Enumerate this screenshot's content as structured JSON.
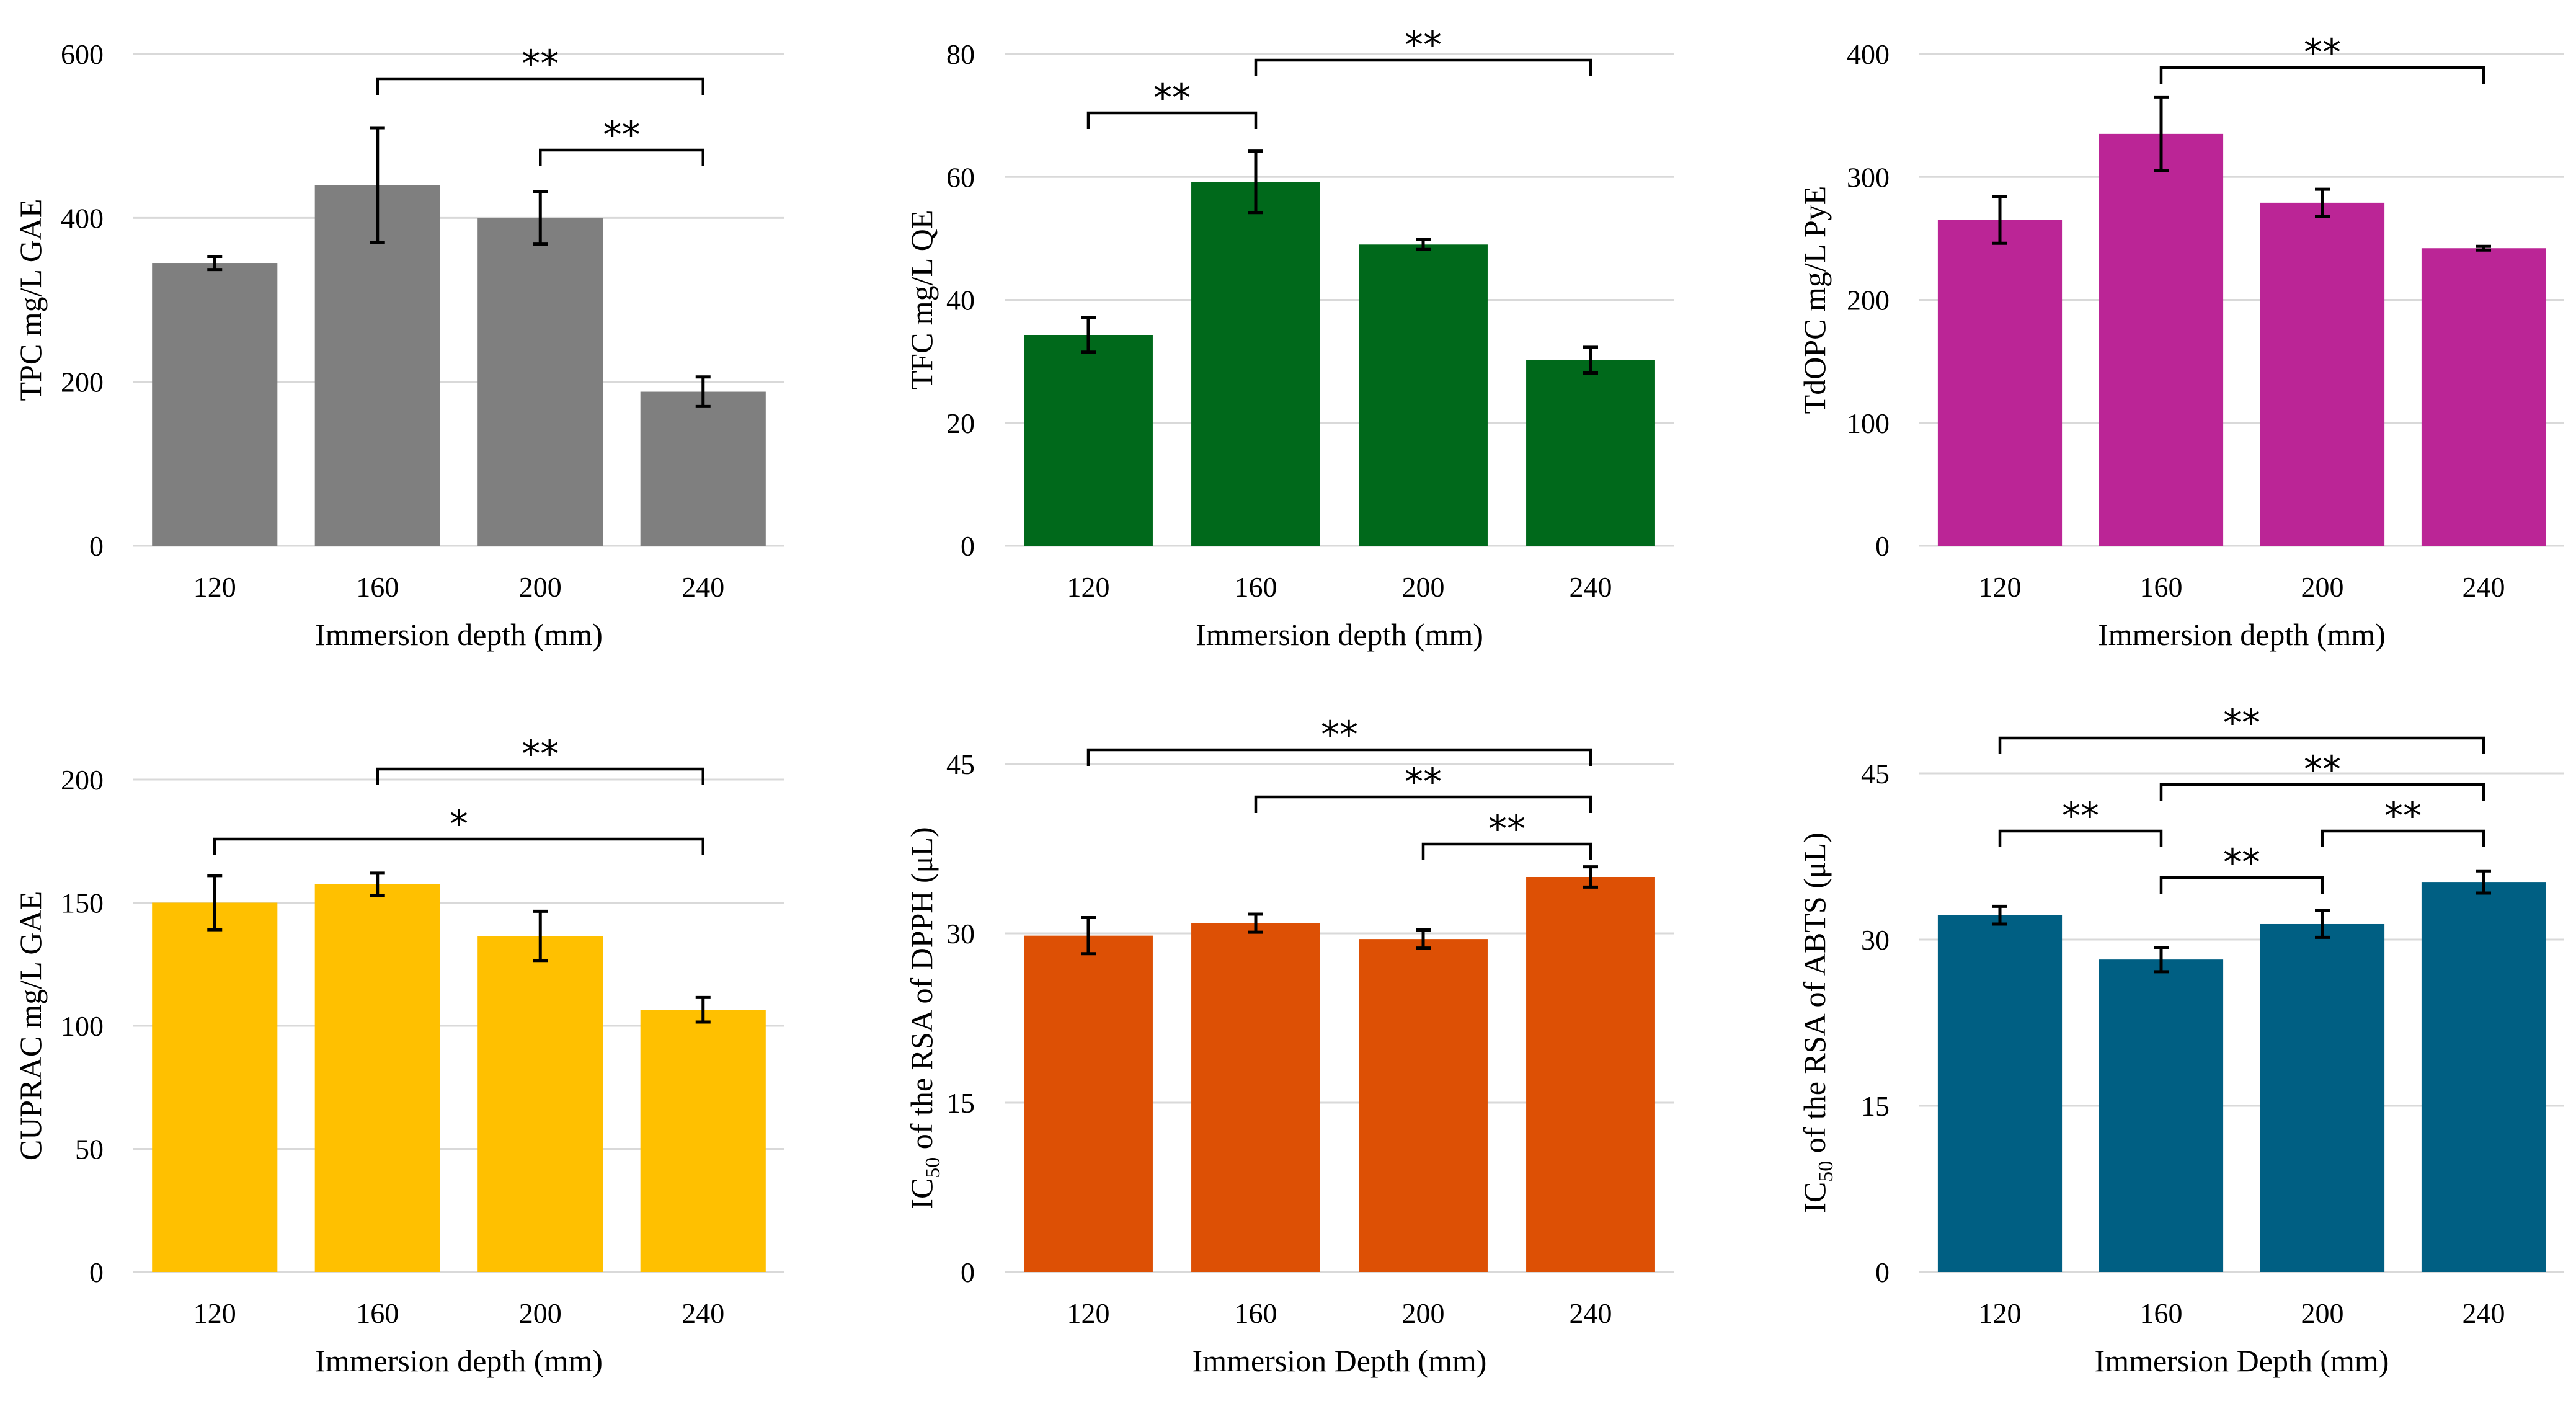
{
  "chart_data": [
    {
      "type": "bar",
      "id": "tpc",
      "color": "#7f7f7f",
      "categories": [
        "120",
        "160",
        "200",
        "240"
      ],
      "values": [
        345,
        440,
        400,
        188
      ],
      "errors": [
        8,
        70,
        32,
        18
      ],
      "ylim": [
        0,
        600
      ],
      "yticks": [
        0,
        200,
        400,
        600
      ],
      "ylabel": "TPC mg/L GAE",
      "xlabel": "Immersion depth (mm)",
      "brackets": [
        {
          "from": 1,
          "to": 3,
          "level": 0,
          "label": "**"
        },
        {
          "from": 2,
          "to": 3,
          "level": 1,
          "label": "**"
        }
      ]
    },
    {
      "type": "bar",
      "id": "tfc",
      "color": "#00691b",
      "categories": [
        "120",
        "160",
        "200",
        "240"
      ],
      "values": [
        34.3,
        59.2,
        49.0,
        30.2
      ],
      "errors": [
        2.8,
        5.0,
        0.8,
        2.1
      ],
      "ylim": [
        0,
        80
      ],
      "yticks": [
        0,
        20,
        40,
        60,
        80
      ],
      "ylabel": "TFC mg/L QE",
      "xlabel": "Immersion depth (mm)",
      "brackets": [
        {
          "from": 1,
          "to": 3,
          "level": 0,
          "label": "**"
        },
        {
          "from": 0,
          "to": 1,
          "level": 1,
          "label": "**"
        }
      ]
    },
    {
      "type": "bar",
      "id": "tdopc",
      "color": "#bb2596",
      "categories": [
        "120",
        "160",
        "200",
        "240"
      ],
      "values": [
        265,
        335,
        279,
        242
      ],
      "errors": [
        19,
        30,
        11,
        1.5
      ],
      "ylim": [
        0,
        400
      ],
      "yticks": [
        0,
        100,
        200,
        300,
        400
      ],
      "ylabel": "TdOPC mg/L PyE",
      "xlabel": "Immersion depth (mm)",
      "brackets": [
        {
          "from": 1,
          "to": 3,
          "level": 0,
          "label": "**"
        }
      ]
    },
    {
      "type": "bar",
      "id": "cuprac",
      "color": "#ffc000",
      "categories": [
        "120",
        "160",
        "200",
        "240"
      ],
      "values": [
        150,
        157.5,
        136.5,
        106.5
      ],
      "errors": [
        11,
        4.5,
        10,
        5
      ],
      "ylim": [
        0,
        200
      ],
      "yticks": [
        0,
        50,
        100,
        150,
        200
      ],
      "ylabel": "CUPRAC mg/L GAE",
      "xlabel": "Immersion depth (mm)",
      "brackets": [
        {
          "from": 1,
          "to": 3,
          "level": 0,
          "label": "**"
        },
        {
          "from": 0,
          "to": 3,
          "level": 1,
          "label": "*"
        }
      ]
    },
    {
      "type": "bar",
      "id": "dpph",
      "color": "#dd5005",
      "categories": [
        "120",
        "160",
        "200",
        "240"
      ],
      "values": [
        29.8,
        30.9,
        29.5,
        35.0
      ],
      "errors": [
        1.6,
        0.8,
        0.8,
        0.9
      ],
      "ylim": [
        0,
        45
      ],
      "yticks": [
        0,
        15,
        30,
        45
      ],
      "ylabel_prefix": "IC",
      "ylabel_sub": "50",
      "ylabel_suffix": " of the RSA of DPPH (μL)",
      "xlabel": "Immersion Depth (mm)",
      "brackets": [
        {
          "from": 0,
          "to": 3,
          "level": 0,
          "label": "**"
        },
        {
          "from": 1,
          "to": 3,
          "level": 1,
          "label": "**"
        },
        {
          "from": 2,
          "to": 3,
          "level": 2,
          "label": "**"
        }
      ]
    },
    {
      "type": "bar",
      "id": "abts",
      "color": "#005f83",
      "categories": [
        "120",
        "160",
        "200",
        "240"
      ],
      "values": [
        32.2,
        28.2,
        31.4,
        35.2
      ],
      "errors": [
        0.8,
        1.1,
        1.2,
        1.0
      ],
      "ylim": [
        0,
        45
      ],
      "yticks": [
        0,
        15,
        30,
        45
      ],
      "ylabel_prefix": "IC",
      "ylabel_sub": "50",
      "ylabel_suffix": " of the RSA of ABTS (μL)",
      "xlabel": "Immersion Depth (mm)",
      "brackets": [
        {
          "from": 0,
          "to": 3,
          "level": 0,
          "label": "**"
        },
        {
          "from": 1,
          "to": 3,
          "level": 1,
          "label": "**"
        },
        {
          "from": 0,
          "to": 1,
          "level": 2,
          "label": "**"
        },
        {
          "from": 2,
          "to": 3,
          "level": 2,
          "label": "**"
        },
        {
          "from": 1,
          "to": 2,
          "level": 3,
          "label": "**"
        }
      ]
    }
  ]
}
